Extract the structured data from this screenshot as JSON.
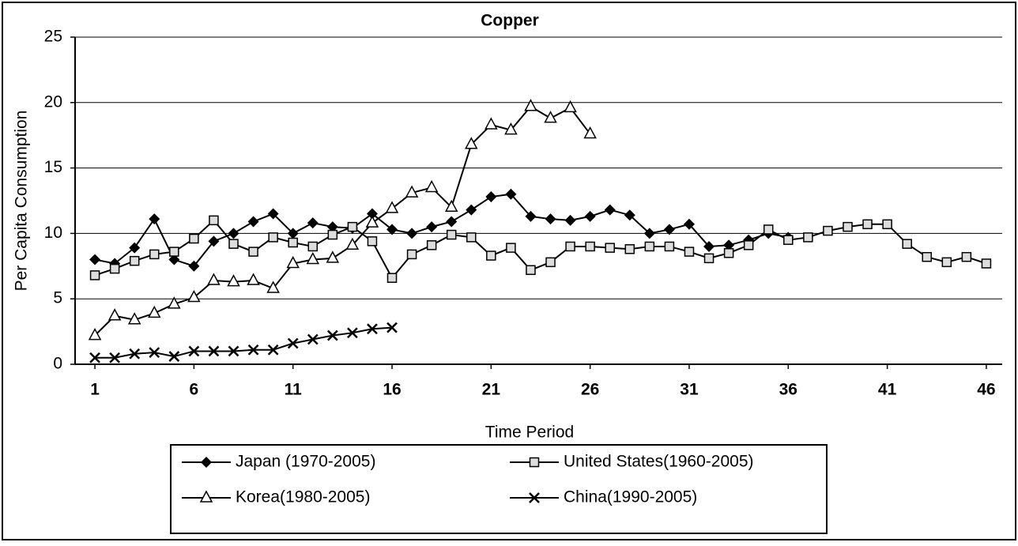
{
  "chart_data": {
    "type": "line",
    "title": "Copper",
    "x_label": "Time Period",
    "y_label": "Per Capita  Consumption",
    "x": [
      1,
      2,
      3,
      4,
      5,
      6,
      7,
      8,
      9,
      10,
      11,
      12,
      13,
      14,
      15,
      16,
      17,
      18,
      19,
      20,
      21,
      22,
      23,
      24,
      25,
      26,
      27,
      28,
      29,
      30,
      31,
      32,
      33,
      34,
      35,
      36,
      37,
      38,
      39,
      40,
      41,
      42,
      43,
      44,
      45,
      46
    ],
    "series": [
      {
        "name": "Japan (1970-2005)",
        "color": "#000000",
        "marker": "diamond",
        "values": [
          8.0,
          7.7,
          8.9,
          11.1,
          8.0,
          7.5,
          9.4,
          10.0,
          10.9,
          11.5,
          10.0,
          10.8,
          10.5,
          10.4,
          11.5,
          10.3,
          10.0,
          10.5,
          10.9,
          11.8,
          12.8,
          13.0,
          11.3,
          11.1,
          11.0,
          11.3,
          11.8,
          11.4,
          10.0,
          10.3,
          10.7,
          9.0,
          9.1,
          9.5,
          10.0,
          9.7,
          null,
          null,
          null,
          null,
          null,
          null,
          null,
          null,
          null,
          null
        ]
      },
      {
        "name": "United States(1960-2005)",
        "color": "#000000",
        "marker": "square",
        "values": [
          6.8,
          7.3,
          7.9,
          8.4,
          8.6,
          9.6,
          11.0,
          9.2,
          8.6,
          9.7,
          9.3,
          9.0,
          9.9,
          10.5,
          9.4,
          6.6,
          8.4,
          9.1,
          9.9,
          9.7,
          8.3,
          8.9,
          7.2,
          7.8,
          9.0,
          9.0,
          8.9,
          8.8,
          9.0,
          9.0,
          8.6,
          8.1,
          8.5,
          9.1,
          10.3,
          9.5,
          9.7,
          10.2,
          10.5,
          10.7,
          10.7,
          9.2,
          8.2,
          7.8,
          8.2,
          7.7
        ]
      },
      {
        "name": "Korea(1980-2005)",
        "color": "#000000",
        "marker": "triangle",
        "values": [
          2.2,
          3.7,
          3.4,
          3.9,
          4.6,
          5.1,
          6.4,
          6.3,
          6.4,
          5.8,
          7.7,
          8.0,
          8.1,
          9.1,
          10.8,
          11.9,
          13.1,
          13.5,
          12.0,
          16.8,
          18.3,
          17.9,
          19.7,
          18.8,
          19.6,
          17.6,
          null,
          null,
          null,
          null,
          null,
          null,
          null,
          null,
          null,
          null,
          null,
          null,
          null,
          null,
          null,
          null,
          null,
          null,
          null,
          null
        ]
      },
      {
        "name": "China(1990-2005)",
        "color": "#000000",
        "marker": "x",
        "values": [
          0.5,
          0.5,
          0.8,
          0.9,
          0.6,
          1.0,
          1.0,
          1.0,
          1.1,
          1.1,
          1.6,
          1.9,
          2.2,
          2.4,
          2.7,
          2.8,
          null,
          null,
          null,
          null,
          null,
          null,
          null,
          null,
          null,
          null,
          null,
          null,
          null,
          null,
          null,
          null,
          null,
          null,
          null,
          null,
          null,
          null,
          null,
          null,
          null,
          null,
          null,
          null,
          null,
          null
        ]
      }
    ],
    "xlim": [
      0,
      47
    ],
    "xticks": [
      1,
      6,
      11,
      16,
      21,
      26,
      31,
      36,
      41,
      46
    ],
    "ylim": [
      0,
      25
    ],
    "yticks": [
      0,
      5,
      10,
      15,
      20,
      25
    ],
    "grid": true
  }
}
